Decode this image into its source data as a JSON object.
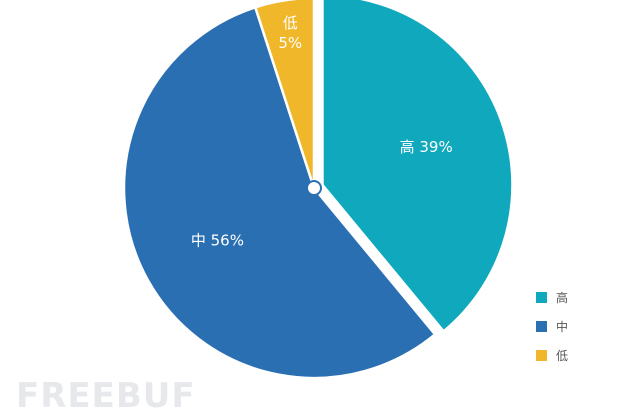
{
  "chart_data": {
    "type": "pie",
    "start_angle_deg": 0,
    "direction": "clockwise",
    "slices": [
      {
        "label": "高",
        "value": 39,
        "text": "高 39%",
        "color": "#0fa8bc",
        "exploded": true
      },
      {
        "label": "中",
        "value": 56,
        "text": "中 56%",
        "color": "#2b6fb3",
        "exploded": false
      },
      {
        "label": "低",
        "value": 5,
        "text_lines": [
          "低",
          "5%"
        ],
        "color": "#f0b72b",
        "exploded": false
      }
    ],
    "legend": {
      "position": "bottom-right",
      "items": [
        {
          "label": "高",
          "color": "#0fa8bc"
        },
        {
          "label": "中",
          "color": "#2b6fb3"
        },
        {
          "label": "低",
          "color": "#f0b72b"
        }
      ]
    }
  },
  "watermark": "FREEBUF"
}
